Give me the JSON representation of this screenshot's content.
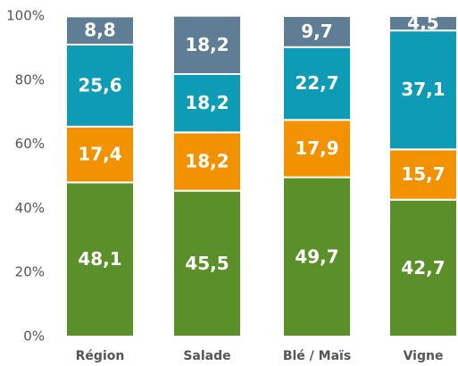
{
  "chart_data": {
    "type": "stacked_bar",
    "categories": [
      "Région",
      "Salade",
      "Blé / Maïs",
      "Vigne"
    ],
    "series": [
      {
        "color": "#5a8f29",
        "values": [
          48.1,
          45.5,
          49.7,
          42.7
        ],
        "value_labels": [
          "48,1",
          "45,5",
          "49,7",
          "42,7"
        ]
      },
      {
        "color": "#f39200",
        "values": [
          17.4,
          18.2,
          17.9,
          15.7
        ],
        "value_labels": [
          "17,4",
          "18,2",
          "17,9",
          "15,7"
        ]
      },
      {
        "color": "#0e9bb5",
        "values": [
          25.6,
          18.2,
          22.7,
          37.1
        ],
        "value_labels": [
          "25,6",
          "18,2",
          "22,7",
          "37,1"
        ]
      },
      {
        "color": "#5f7d95",
        "values": [
          8.8,
          18.2,
          9.7,
          4.5
        ],
        "value_labels": [
          "8,8",
          "18,2",
          "9,7",
          "4,5"
        ]
      }
    ],
    "ylim": [
      0,
      100
    ],
    "yticks": [
      {
        "value": 0,
        "label": "0%"
      },
      {
        "value": 20,
        "label": "20%"
      },
      {
        "value": 40,
        "label": "40%"
      },
      {
        "value": 60,
        "label": "60%"
      },
      {
        "value": 80,
        "label": "80%"
      },
      {
        "value": 100,
        "label": "100%"
      }
    ],
    "grid": false
  }
}
